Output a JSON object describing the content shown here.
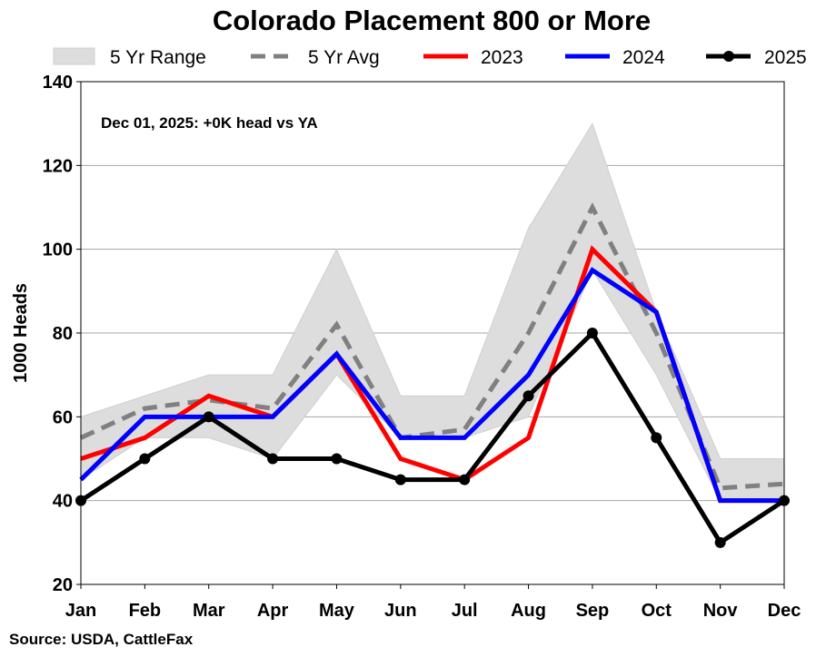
{
  "chart_data": {
    "type": "line",
    "title": "Colorado Placement 800 or More",
    "xlabel": "",
    "ylabel": "1000 Heads",
    "categories": [
      "Jan",
      "Feb",
      "Mar",
      "Apr",
      "May",
      "Jun",
      "Jul",
      "Aug",
      "Sep",
      "Oct",
      "Nov",
      "Dec"
    ],
    "ylim": [
      20,
      140
    ],
    "yticks": [
      20,
      40,
      60,
      80,
      100,
      120,
      140
    ],
    "grid": true,
    "legend": [
      "5 Yr Range",
      "5 Yr Avg",
      "2023",
      "2024",
      "2025"
    ],
    "legend_position": "top",
    "range": {
      "name": "5 Yr Range",
      "color": "#dddddd",
      "low": [
        45,
        55,
        55,
        50,
        70,
        55,
        55,
        60,
        95,
        70,
        40,
        40
      ],
      "high": [
        60,
        65,
        70,
        70,
        100,
        65,
        65,
        105,
        130,
        85,
        50,
        50
      ]
    },
    "series": [
      {
        "name": "5 Yr Avg",
        "color": "#808080",
        "style": "dashed",
        "markers": false,
        "values": [
          55,
          62,
          64,
          62,
          82,
          55,
          57,
          80,
          110,
          80,
          43,
          44
        ]
      },
      {
        "name": "2023",
        "color": "#ff0000",
        "style": "solid",
        "markers": false,
        "values": [
          50,
          55,
          65,
          60,
          75,
          50,
          45,
          55,
          100,
          85,
          40,
          40
        ]
      },
      {
        "name": "2024",
        "color": "#0000ff",
        "style": "solid",
        "markers": false,
        "values": [
          45,
          60,
          60,
          60,
          75,
          55,
          55,
          70,
          95,
          85,
          40,
          40
        ]
      },
      {
        "name": "2025",
        "color": "#000000",
        "style": "solid",
        "markers": true,
        "values": [
          40,
          50,
          60,
          50,
          50,
          45,
          45,
          65,
          80,
          55,
          30,
          40
        ]
      }
    ],
    "annotation": "Dec 01, 2025: +0K head vs YA",
    "source": "Source: USDA, CattleFax"
  }
}
